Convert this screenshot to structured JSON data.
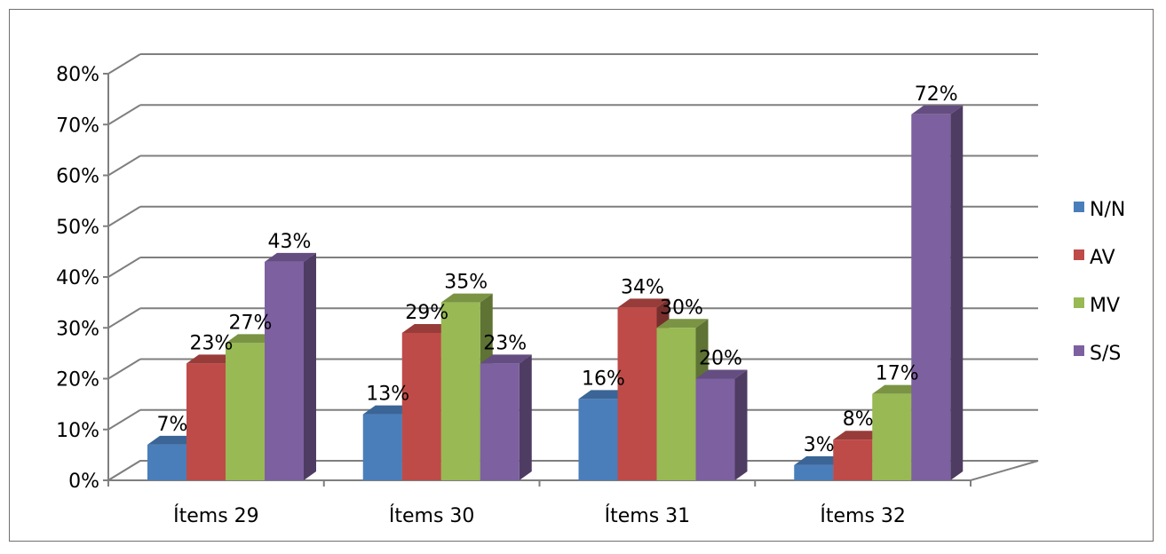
{
  "chart_data": {
    "type": "bar",
    "categories": [
      "Ítems 29",
      "Ítems 30",
      "Ítems 31",
      "Ítems 32"
    ],
    "series": [
      {
        "name": "N/N",
        "values": [
          7,
          13,
          16,
          3
        ],
        "labels": [
          "7%",
          "13%",
          "16%",
          "3%"
        ]
      },
      {
        "name": "AV",
        "values": [
          23,
          29,
          34,
          8
        ],
        "labels": [
          "23%",
          "29%",
          "34%",
          "8%"
        ]
      },
      {
        "name": "MV",
        "values": [
          27,
          35,
          30,
          17
        ],
        "labels": [
          "27%",
          "35%",
          "30%",
          "17%"
        ]
      },
      {
        "name": "S/S",
        "values": [
          43,
          23,
          20,
          72
        ],
        "labels": [
          "43%",
          "23%",
          "20%",
          "72%"
        ]
      }
    ],
    "y_ticks": [
      "0%",
      "10%",
      "20%",
      "30%",
      "40%",
      "50%",
      "60%",
      "70%",
      "80%"
    ],
    "ylim": [
      0,
      80
    ],
    "ystep": 10,
    "grid": true,
    "legend_position": "right",
    "style": "3d-clustered-column"
  },
  "colors": {
    "N/N": "#4a7ebb",
    "AV": "#be4b48",
    "MV": "#98b954",
    "S/S": "#7d60a0",
    "grid": "#7f7f7f"
  }
}
